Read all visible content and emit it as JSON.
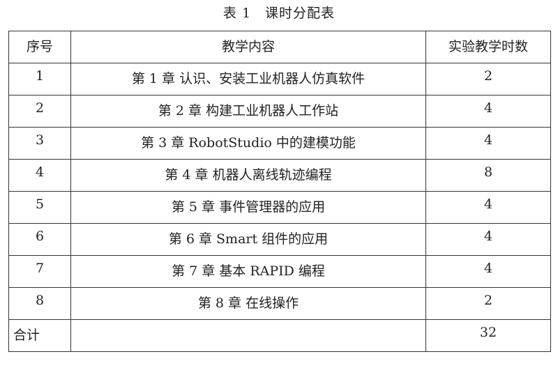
{
  "title": "表 1　课时分配表",
  "headers": [
    "序号",
    "教学内容",
    "实验教学时数"
  ],
  "rows": [
    {
      "no": "1",
      "content": "第 1 章  认识、安装工业机器人仿真软件",
      "hours": "2"
    },
    {
      "no": "2",
      "content": "第 2 章  构建工业机器人工作站",
      "hours": "4"
    },
    {
      "no": "3",
      "content": "第 3 章  RobotStudio 中的建模功能",
      "hours": "4"
    },
    {
      "no": "4",
      "content": "第 4 章  机器人离线轨迹编程",
      "hours": "8"
    },
    {
      "no": "5",
      "content": "第 5 章  事件管理器的应用",
      "hours": "4"
    },
    {
      "no": "6",
      "content": "第 6 章  Smart 组件的应用",
      "hours": "4"
    },
    {
      "no": "7",
      "content": "第 7 章  基本 RAPID 编程",
      "hours": "4"
    },
    {
      "no": "8",
      "content": "第 8 章  在线操作",
      "hours": "2"
    }
  ],
  "total": {
    "label": "合计",
    "content": "",
    "hours": "32"
  }
}
